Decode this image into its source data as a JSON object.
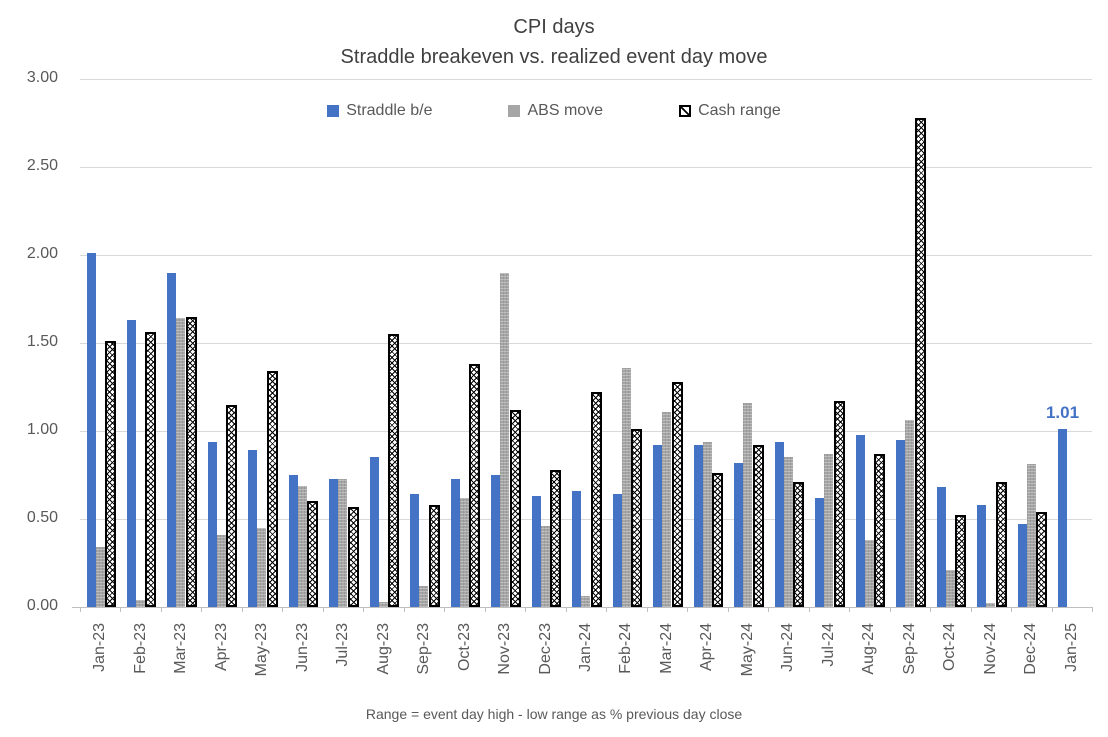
{
  "chart_data": {
    "type": "bar",
    "title": "CPI days",
    "subtitle": "Straddle breakeven vs. realized event day move",
    "footnote": "Range = event day high - low range as % previous day close",
    "legend_position": "top",
    "grid": "horizontal",
    "ylim": [
      0,
      3
    ],
    "ytick_step": 0.5,
    "ytick_labels": [
      "0.00",
      "0.50",
      "1.00",
      "1.50",
      "2.00",
      "2.50",
      "3.00"
    ],
    "categories": [
      "Jan-23",
      "Feb-23",
      "Mar-23",
      "Apr-23",
      "May-23",
      "Jun-23",
      "Jul-23",
      "Aug-23",
      "Sep-23",
      "Oct-23",
      "Nov-23",
      "Dec-23",
      "Jan-24",
      "Feb-24",
      "Mar-24",
      "Apr-24",
      "May-24",
      "Jun-24",
      "Jul-24",
      "Aug-24",
      "Sep-24",
      "Oct-24",
      "Nov-24",
      "Dec-24",
      "Jan-25"
    ],
    "series": [
      {
        "name": "Straddle b/e",
        "color": "#4472C4",
        "style": "solid",
        "values": [
          2.01,
          1.63,
          1.9,
          0.94,
          0.89,
          0.75,
          0.73,
          0.85,
          0.64,
          0.73,
          0.75,
          0.63,
          0.66,
          0.64,
          0.92,
          0.92,
          0.82,
          0.94,
          0.62,
          0.98,
          0.95,
          0.68,
          0.58,
          0.47,
          1.01
        ]
      },
      {
        "name": "ABS move",
        "color": "#A6A6A6",
        "style": "solid",
        "values": [
          0.34,
          0.04,
          1.64,
          0.41,
          0.45,
          0.69,
          0.73,
          0.03,
          0.12,
          0.62,
          1.9,
          0.46,
          0.06,
          1.36,
          1.11,
          0.94,
          1.16,
          0.85,
          0.87,
          0.38,
          1.06,
          0.21,
          0.02,
          0.81,
          null
        ]
      },
      {
        "name": "Cash range",
        "color": "#000000",
        "style": "crosshatch-outline",
        "values": [
          1.51,
          1.56,
          1.65,
          1.15,
          1.34,
          0.6,
          0.57,
          1.55,
          0.58,
          1.38,
          1.12,
          0.78,
          1.22,
          1.01,
          1.28,
          0.76,
          0.92,
          0.71,
          1.17,
          0.87,
          2.78,
          0.52,
          0.71,
          0.54,
          null
        ]
      }
    ],
    "annotations": [
      {
        "series": "Straddle b/e",
        "category": "Jan-25",
        "text": "1.01",
        "color": "#4472C4"
      }
    ]
  }
}
